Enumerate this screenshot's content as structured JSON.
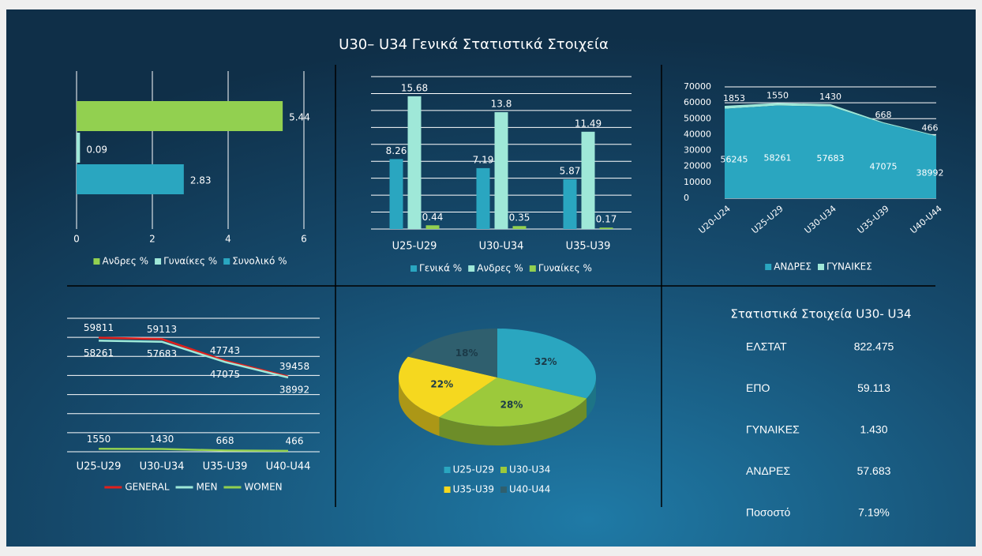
{
  "title": "U30– U34 Γενικά Στατιστικά Στοιχεία",
  "chart_data": [
    {
      "type": "hbar",
      "xlim": [
        0,
        6
      ],
      "xticks": [
        0,
        2,
        4,
        6
      ],
      "grid": true,
      "series": [
        {
          "name": "Ανδρες %",
          "color": "#92d050",
          "values": [
            5.44
          ]
        },
        {
          "name": "Γυναίκες %",
          "color": "#9fe8d8",
          "values": [
            0.09
          ]
        },
        {
          "name": "Συνολικό %",
          "color": "#2aa6c0",
          "values": [
            2.83
          ]
        }
      ]
    },
    {
      "type": "bar",
      "categories": [
        "U25-U29",
        "U30-U34",
        "U35-U39"
      ],
      "ylim": [
        0,
        18
      ],
      "yticks": [
        0,
        2,
        4,
        6,
        8,
        10,
        12,
        14,
        16,
        18
      ],
      "grid": true,
      "series": [
        {
          "name": "Γενικά %",
          "color": "#2aa6c0",
          "values": [
            8.26,
            7.19,
            5.87
          ]
        },
        {
          "name": "Ανδρες %",
          "color": "#9fe8d8",
          "values": [
            15.68,
            13.8,
            11.49
          ]
        },
        {
          "name": "Γυναίκες %",
          "color": "#92d050",
          "values": [
            0.44,
            0.35,
            0.17
          ]
        }
      ]
    },
    {
      "type": "area",
      "stacked": true,
      "categories": [
        "U20-U24",
        "U25-U29",
        "U30-U34",
        "U35-U39",
        "U40-U44"
      ],
      "ylim": [
        0,
        70000
      ],
      "yticks": [
        0,
        10000,
        20000,
        30000,
        40000,
        50000,
        60000,
        70000
      ],
      "grid": true,
      "series": [
        {
          "name": "ΑΝΔΡΕΣ",
          "color": "#2aa6c0",
          "values": [
            56245,
            58261,
            57683,
            47075,
            38992
          ]
        },
        {
          "name": "ΓΥΝΑΙΚΕΣ",
          "color": "#9fe8d8",
          "values": [
            1853,
            1550,
            1430,
            668,
            466
          ]
        }
      ]
    },
    {
      "type": "line",
      "categories": [
        "U25-U29",
        "U30-U34",
        "U35-U39",
        "U40-U44"
      ],
      "ylim": [
        0,
        70000
      ],
      "yticks": [
        0,
        10000,
        20000,
        30000,
        40000,
        50000,
        60000,
        70000
      ],
      "grid": true,
      "series": [
        {
          "name": "GENERAL",
          "color": "#e0201c",
          "values": [
            59811,
            59113,
            47743,
            39458
          ]
        },
        {
          "name": "MEN",
          "color": "#9fe8d8",
          "values": [
            58261,
            57683,
            47075,
            38992
          ]
        },
        {
          "name": "WOMEN",
          "color": "#92d050",
          "values": [
            1550,
            1430,
            668,
            466
          ]
        }
      ]
    },
    {
      "type": "pie",
      "categories": [
        "U25-U29",
        "U30-U34",
        "U35-U39",
        "U40-U44"
      ],
      "values": [
        32,
        28,
        22,
        18
      ],
      "value_labels": [
        "32%",
        "28%",
        "22%",
        "18%"
      ],
      "colors": [
        "#2aa6c0",
        "#9cc93b",
        "#f5d81f",
        "#2f5f6e"
      ]
    }
  ],
  "table": {
    "title": "Στατιστικά Στοιχεία   U30- U34",
    "rows": [
      [
        "ΕΛΣΤΑΤ",
        "822.475"
      ],
      [
        "ΕΠΟ",
        "59.113"
      ],
      [
        "ΓΥΝΑΙΚΕΣ",
        "1.430"
      ],
      [
        "ΑΝΔΡΕΣ",
        "57.683"
      ],
      [
        "Ποσοστό",
        "7.19%"
      ]
    ]
  }
}
